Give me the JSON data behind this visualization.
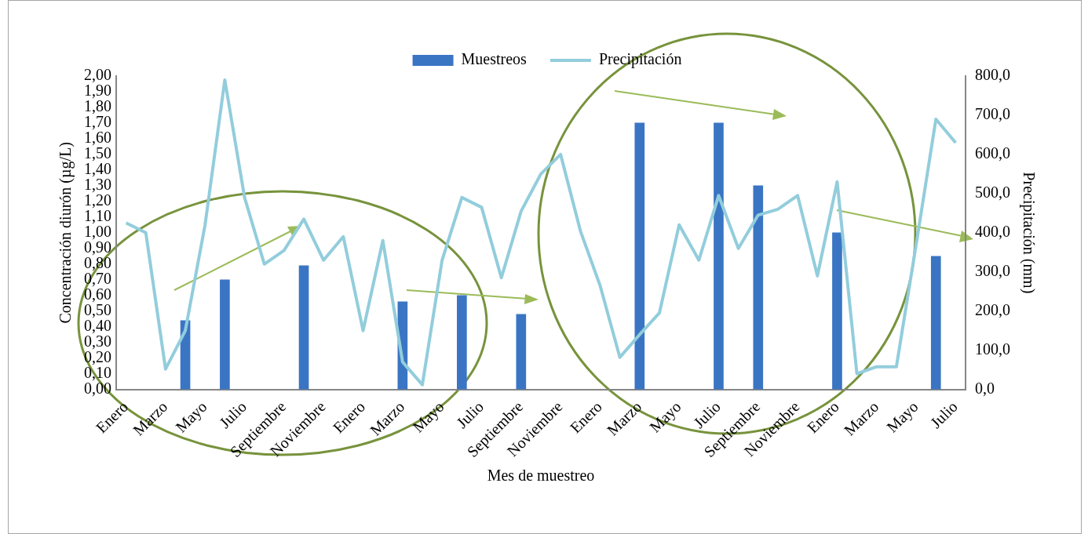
{
  "chart_data": {
    "type": "bar",
    "xlabel": "Mes de muestreo",
    "ylabel": "Concentración diurón (µg/L)",
    "y2label": "Precipitación (mm)",
    "categories": [
      "Enero",
      null,
      "Marzo",
      null,
      "Mayo",
      null,
      "Julio",
      null,
      "Septiembre",
      null,
      "Noviembre",
      null,
      "Enero",
      null,
      "Marzo",
      null,
      "Mayo",
      null,
      "Julio",
      null,
      "Septiembre",
      null,
      "Noviembre",
      null,
      "Enero",
      null,
      "Marzo",
      null,
      "Mayo",
      null,
      "Julio",
      null,
      "Septiembre",
      null,
      "Noviembre",
      null,
      "Enero",
      null,
      "Marzo",
      null,
      "Mayo",
      null,
      "Julio"
    ],
    "series": [
      {
        "name": "Muestreos",
        "color": "#3a75c4",
        "values": [
          null,
          null,
          null,
          0.44,
          null,
          0.7,
          null,
          null,
          null,
          0.79,
          null,
          null,
          null,
          null,
          0.56,
          null,
          null,
          0.6,
          null,
          null,
          0.48,
          null,
          null,
          null,
          null,
          null,
          1.7,
          null,
          null,
          null,
          1.7,
          null,
          1.3,
          null,
          null,
          null,
          1.0,
          null,
          null,
          null,
          null,
          0.85,
          null
        ]
      },
      {
        "name": "Precipitación",
        "type": "line",
        "axis": "y2",
        "color": "#92cddc",
        "values": [
          425,
          400,
          52,
          150,
          420,
          790,
          490,
          320,
          355,
          435,
          330,
          390,
          150,
          380,
          70,
          12,
          330,
          490,
          465,
          285,
          455,
          550,
          600,
          405,
          265,
          82,
          140,
          195,
          420,
          330,
          495,
          360,
          445,
          460,
          495,
          290,
          530,
          40,
          58,
          58,
          370,
          690,
          630
        ]
      }
    ],
    "ylim": [
      0,
      2
    ],
    "yticks": [
      {
        "value": 0,
        "label": "0,00"
      },
      {
        "value": 0.1,
        "label": "0,10"
      },
      {
        "value": 0.2,
        "label": "0,20"
      },
      {
        "value": 0.3,
        "label": "0,30"
      },
      {
        "value": 0.4,
        "label": "0,40"
      },
      {
        "value": 0.5,
        "label": "0,50"
      },
      {
        "value": 0.6,
        "label": "0,60"
      },
      {
        "value": 0.7,
        "label": "0,70"
      },
      {
        "value": 0.8,
        "label": "0,80"
      },
      {
        "value": 0.9,
        "label": "0,90"
      },
      {
        "value": 1,
        "label": "1,00"
      },
      {
        "value": 1.1,
        "label": "1,10"
      },
      {
        "value": 1.2,
        "label": "1,20"
      },
      {
        "value": 1.3,
        "label": "1,30"
      },
      {
        "value": 1.4,
        "label": "1,40"
      },
      {
        "value": 1.5,
        "label": "1,50"
      },
      {
        "value": 1.6,
        "label": "1,60"
      },
      {
        "value": 1.7,
        "label": "1,70"
      },
      {
        "value": 1.8,
        "label": "1,80"
      },
      {
        "value": 1.9,
        "label": "1,90"
      },
      {
        "value": 2,
        "label": "2,00"
      }
    ],
    "y2lim": [
      0,
      800
    ],
    "y2ticks": [
      {
        "value": 0,
        "label": "0,0"
      },
      {
        "value": 100,
        "label": "100,0"
      },
      {
        "value": 200,
        "label": "200,0"
      },
      {
        "value": 300,
        "label": "300,0"
      },
      {
        "value": 400,
        "label": "400,0"
      },
      {
        "value": 500,
        "label": "500,0"
      },
      {
        "value": 600,
        "label": "600,0"
      },
      {
        "value": 700,
        "label": "700,0"
      },
      {
        "value": 800,
        "label": "800,0"
      }
    ],
    "legend": "top",
    "marker": "none",
    "line_style": "solid"
  }
}
